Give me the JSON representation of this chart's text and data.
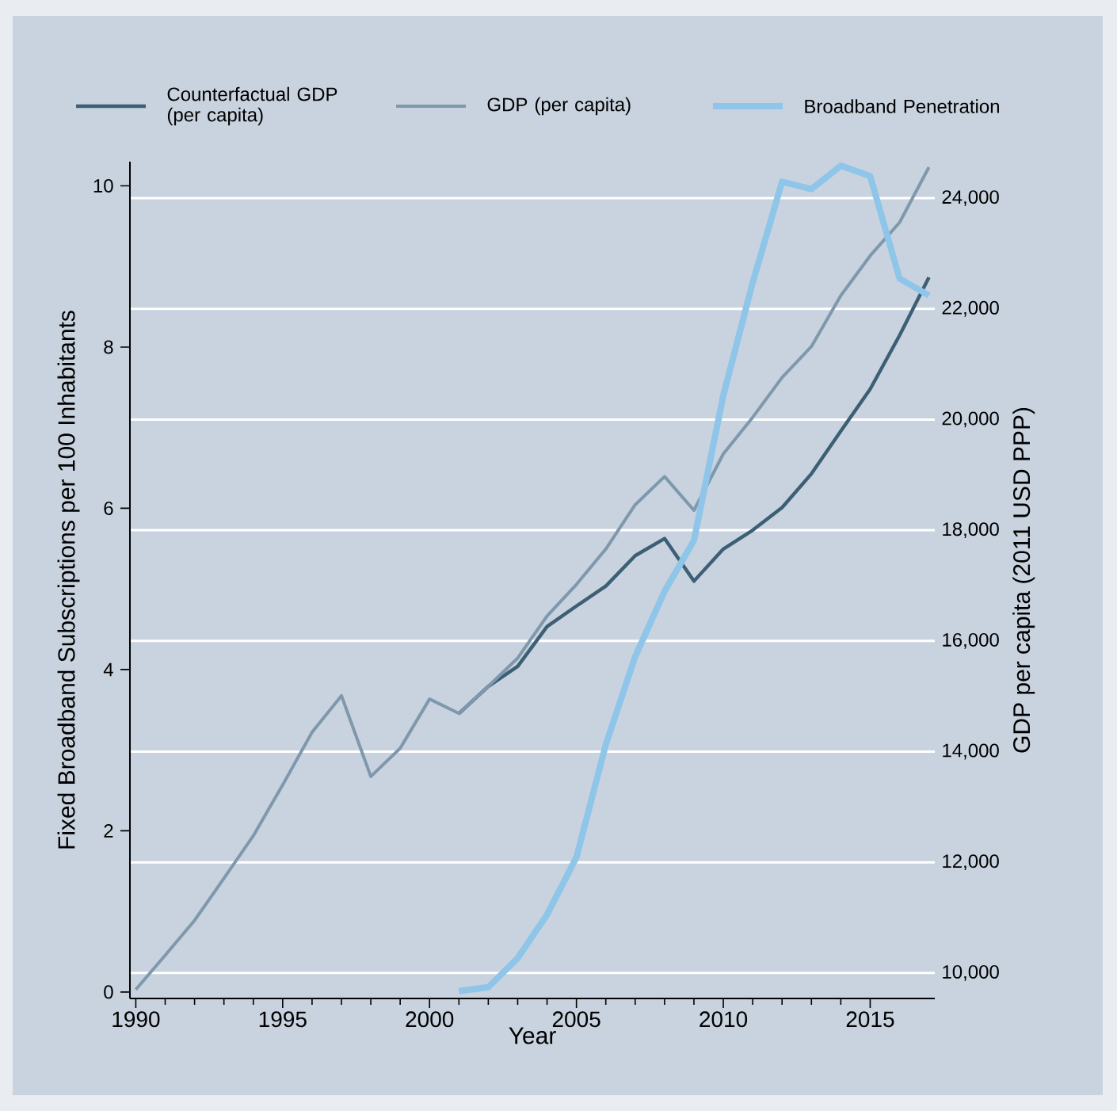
{
  "chart_data": {
    "type": "line",
    "xlabel": "Year",
    "ylabel": "Fixed Broadband Subscriptions per 100 Inhabitants",
    "y2label": "GDP per capita (2011 USD PPP)",
    "x": [
      1990,
      1991,
      1992,
      1993,
      1994,
      1995,
      1996,
      1997,
      1998,
      1999,
      2000,
      2001,
      2002,
      2003,
      2004,
      2005,
      2006,
      2007,
      2008,
      2009,
      2010,
      2011,
      2012,
      2013,
      2014,
      2015,
      2016,
      2017
    ],
    "series": [
      {
        "name": "Counterfactual GDP (per capita)",
        "color": "#3d5f75",
        "axis": "y2",
        "values": [
          null,
          null,
          null,
          null,
          null,
          null,
          null,
          null,
          null,
          null,
          null,
          14690,
          15180,
          15540,
          16260,
          16630,
          16990,
          17540,
          17850,
          17080,
          17660,
          18000,
          18410,
          19020,
          19790,
          20550,
          21520,
          22570
        ]
      },
      {
        "name": "GDP (per capita)",
        "color": "#7f98ac",
        "axis": "y2",
        "values": [
          9700,
          10320,
          10950,
          11710,
          12480,
          13400,
          14350,
          15010,
          13550,
          14060,
          14950,
          14690,
          15180,
          15690,
          16450,
          17020,
          17660,
          18460,
          18970,
          18360,
          19380,
          20040,
          20760,
          21320,
          22240,
          22960,
          23560,
          24560
        ]
      },
      {
        "name": "Broadband Penetration",
        "color": "#8ec5e8",
        "values": [
          null,
          null,
          null,
          null,
          null,
          null,
          null,
          null,
          null,
          null,
          null,
          0.01,
          0.06,
          0.42,
          0.96,
          1.67,
          3.07,
          4.16,
          4.97,
          5.6,
          7.4,
          8.8,
          10.05,
          9.96,
          10.25,
          10.12,
          8.85,
          8.64
        ]
      }
    ],
    "xlim": [
      1989.8,
      2017.2
    ],
    "xticks": [
      1990,
      1995,
      2000,
      2005,
      2010,
      2015
    ],
    "ylim": [
      -0.08,
      10.3
    ],
    "yticks": [
      0,
      2,
      4,
      6,
      8,
      10
    ],
    "y2lim": [
      9540,
      24660
    ],
    "y2ticks": [
      {
        "value": 10000,
        "label": "10,000"
      },
      {
        "value": 12000,
        "label": "12,000"
      },
      {
        "value": 14000,
        "label": "14,000"
      },
      {
        "value": 16000,
        "label": "16,000"
      },
      {
        "value": 18000,
        "label": "18,000"
      },
      {
        "value": 20000,
        "label": "20,000"
      },
      {
        "value": 22000,
        "label": "22,000"
      },
      {
        "value": 24000,
        "label": "24,000"
      }
    ],
    "grid": "y",
    "legend": "top",
    "marker": "none",
    "line_style": "solid"
  }
}
